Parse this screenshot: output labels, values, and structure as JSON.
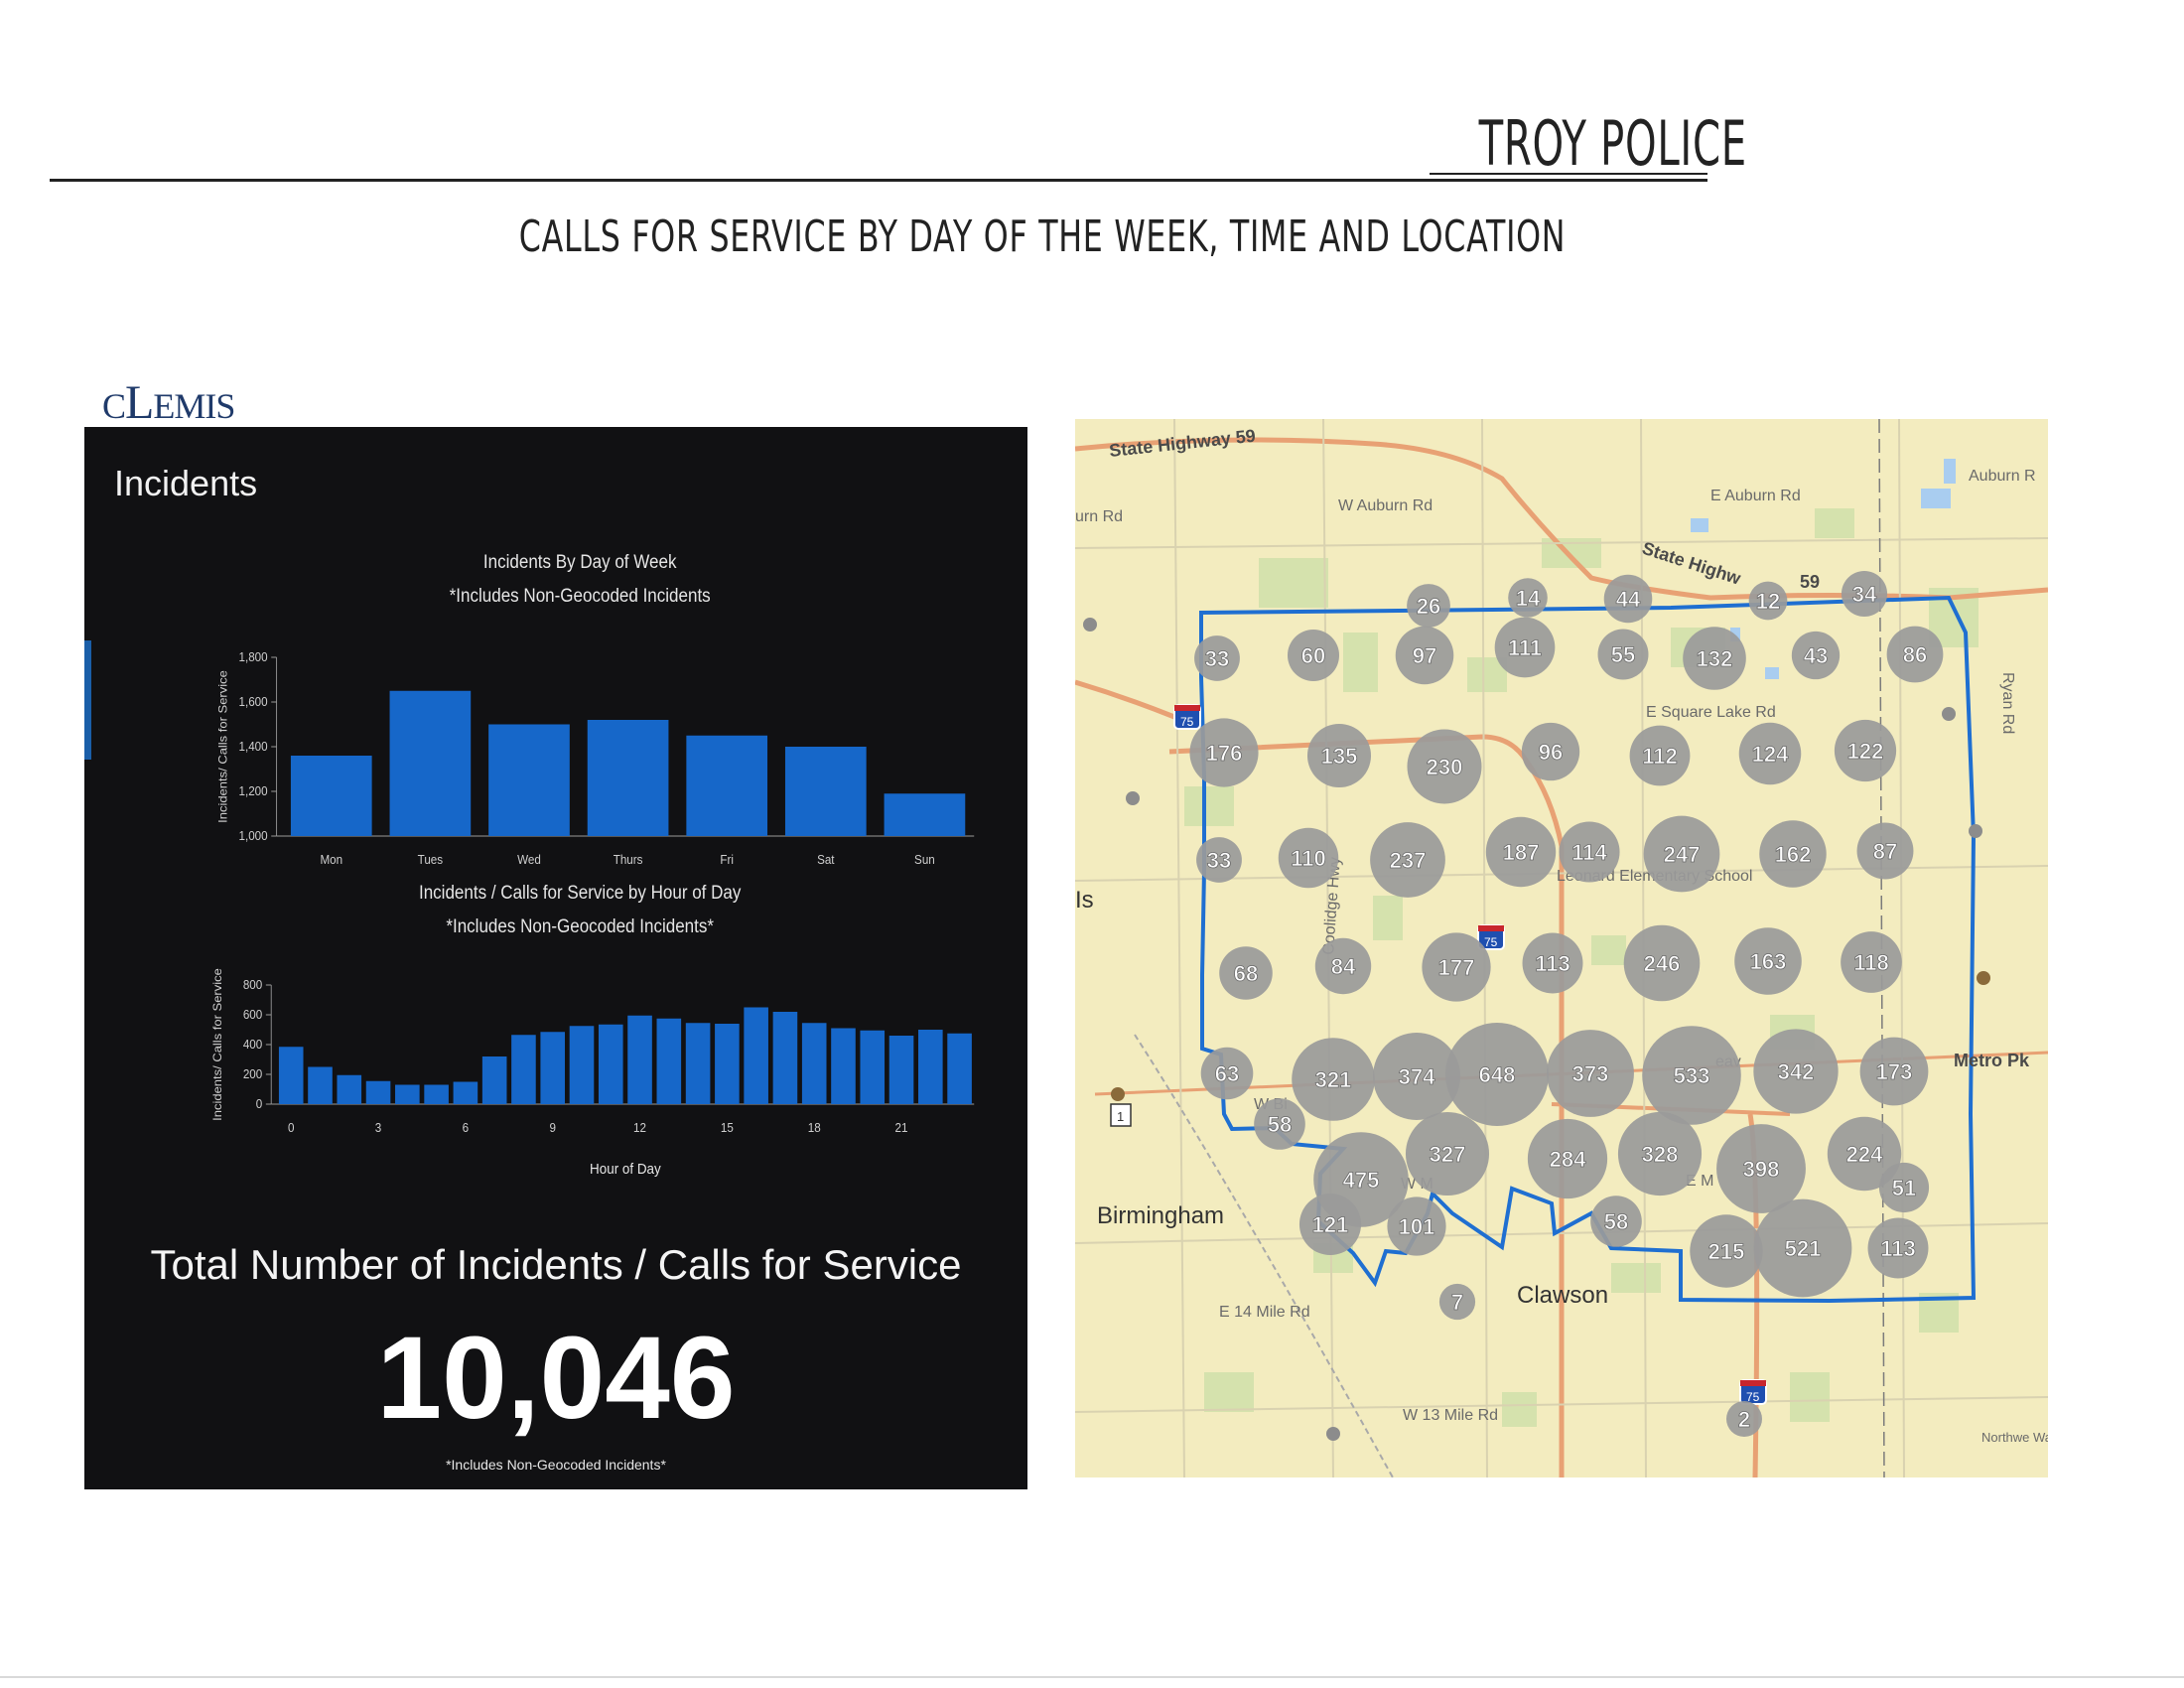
{
  "header": {
    "title": "TROY POLICE",
    "subtitle": "CALLS FOR SERVICE BY DAY OF THE WEEK, TIME AND LOCATION"
  },
  "logo": {
    "text": "CLEMIS"
  },
  "panel": {
    "title": "Incidents",
    "total_label": "Total Number of Incidents / Calls for Service",
    "total_value": "10,046",
    "total_note": "*Includes Non-Geocoded Incidents*"
  },
  "chart_data": [
    {
      "type": "bar",
      "title": "Incidents By Day of Week",
      "subtitle": "*Includes Non-Geocoded Incidents",
      "ylabel": "Incidents/ Calls for Service",
      "xlabel": "",
      "categories": [
        "Mon",
        "Tues",
        "Wed",
        "Thurs",
        "Fri",
        "Sat",
        "Sun"
      ],
      "values": [
        1360,
        1650,
        1500,
        1520,
        1450,
        1400,
        1190
      ],
      "ylim": [
        1000,
        1800
      ],
      "yticks": [
        1000,
        1200,
        1400,
        1600,
        1800
      ],
      "ytick_labels": [
        "1,000",
        "1,200",
        "1,400",
        "1,600",
        "1,800"
      ],
      "color": "#1667c9"
    },
    {
      "type": "bar",
      "title": "Incidents / Calls for Service  by Hour of Day",
      "subtitle": "*Includes Non-Geocoded Incidents*",
      "ylabel": "Incidents/ Calls for Service",
      "xlabel": "Hour of Day",
      "categories": [
        0,
        1,
        2,
        3,
        4,
        5,
        6,
        7,
        8,
        9,
        10,
        11,
        12,
        13,
        14,
        15,
        16,
        17,
        18,
        19,
        20,
        21,
        22,
        23
      ],
      "values": [
        385,
        250,
        195,
        155,
        130,
        130,
        150,
        320,
        465,
        485,
        525,
        535,
        595,
        575,
        545,
        540,
        650,
        620,
        545,
        510,
        495,
        460,
        500,
        475
      ],
      "ylim": [
        0,
        800
      ],
      "yticks": [
        0,
        200,
        400,
        600,
        800
      ],
      "ytick_labels": [
        "0",
        "200",
        "400",
        "600",
        "800"
      ],
      "xtick_labels": [
        "0",
        "3",
        "6",
        "9",
        "12",
        "15",
        "18",
        "21"
      ],
      "color": "#1667c9"
    }
  ],
  "map": {
    "roads": [
      "State Highway 59",
      "W Auburn Rd",
      "E Auburn Rd",
      "Auburn R",
      "urn Rd",
      "State Highw",
      "59",
      "E Square Lake Rd",
      "Coolidge Hwy",
      "Ryan Rd",
      "W Bi",
      "Metro Pk",
      "E 14 Mile Rd",
      "W 13 Mile Rd",
      "E M",
      "W M",
      "eav",
      "Is"
    ],
    "places": [
      "Leonard Elementary School",
      "Birmingham",
      "Clawson",
      "Northwe Warre"
    ],
    "route_shields": [
      "75",
      "75",
      "75",
      "1"
    ],
    "clusters": [
      "26",
      "14",
      "44",
      "12",
      "34",
      "33",
      "60",
      "97",
      "111",
      "55",
      "132",
      "43",
      "86",
      "176",
      "135",
      "230",
      "96",
      "112",
      "124",
      "122",
      "33",
      "110",
      "237",
      "187",
      "114",
      "247",
      "162",
      "87",
      "68",
      "84",
      "177",
      "113",
      "246",
      "163",
      "118",
      "63",
      "321",
      "374",
      "648",
      "373",
      "533",
      "342",
      "173",
      "58",
      "475",
      "327",
      "284",
      "328",
      "398",
      "224",
      "51",
      "121",
      "101",
      "58",
      "215",
      "521",
      "113",
      "7",
      "2"
    ],
    "colors": {
      "boundary": "#1f6fd1",
      "cluster": "#9a9a9a",
      "land": "#f3ecbf",
      "road": "#e8a174",
      "park": "#cfe0a9"
    }
  }
}
